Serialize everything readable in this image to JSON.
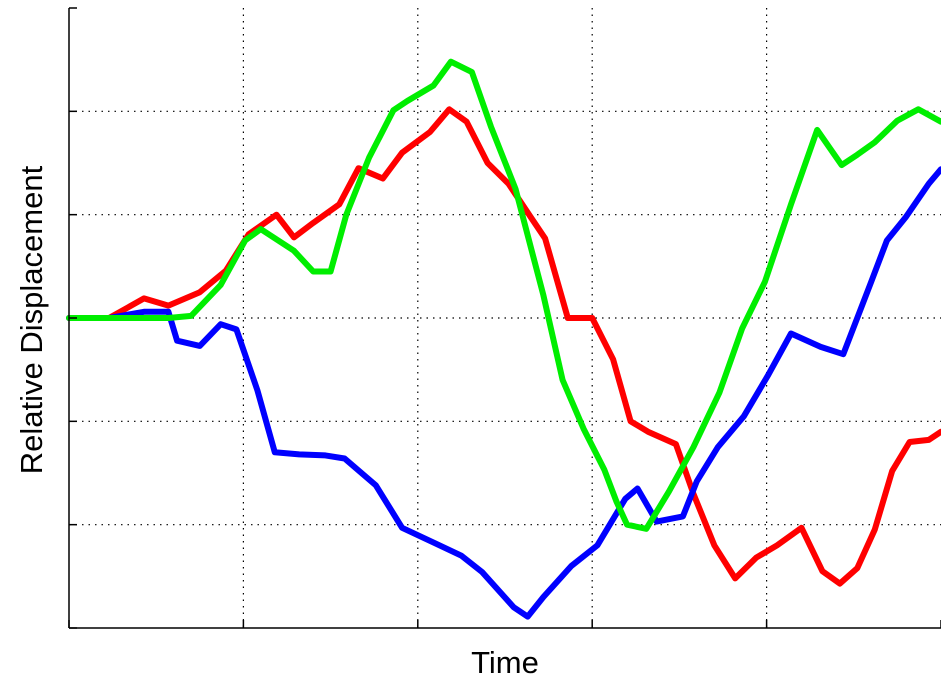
{
  "chart_data": {
    "type": "line",
    "title": "",
    "xlabel": "Time",
    "ylabel": "Relative Displacement",
    "xlim": [
      0,
      5
    ],
    "ylim": [
      -3,
      3
    ],
    "x_ticks": [
      0,
      1,
      2,
      3,
      4,
      5
    ],
    "y_ticks": [
      -3,
      -2,
      -1,
      0,
      1,
      2,
      3
    ],
    "grid": true,
    "legend": "none",
    "series": [
      {
        "color": "#ff0000",
        "x": [
          0,
          0.23,
          0.43,
          0.57,
          0.75,
          0.9,
          1.03,
          1.19,
          1.29,
          1.4,
          1.55,
          1.66,
          1.8,
          1.91,
          2.07,
          2.18,
          2.28,
          2.4,
          2.52,
          2.65,
          2.73,
          2.86,
          3.0,
          3.12,
          3.22,
          3.32,
          3.48,
          3.58,
          3.7,
          3.82,
          3.94,
          4.06,
          4.2,
          4.32,
          4.42,
          4.52,
          4.62,
          4.72,
          4.82,
          4.93,
          5.0
        ],
        "values": [
          0,
          0,
          0.19,
          0.12,
          0.25,
          0.46,
          0.81,
          1.0,
          0.78,
          0.92,
          1.1,
          1.45,
          1.35,
          1.6,
          1.8,
          2.02,
          1.9,
          1.5,
          1.3,
          0.97,
          0.77,
          0.0,
          0.0,
          -0.4,
          -1.0,
          -1.1,
          -1.22,
          -1.7,
          -2.2,
          -2.52,
          -2.32,
          -2.2,
          -2.03,
          -2.45,
          -2.57,
          -2.42,
          -2.05,
          -1.48,
          -1.2,
          -1.18,
          -1.1
        ]
      },
      {
        "color": "#0000ff",
        "x": [
          0,
          0.23,
          0.43,
          0.57,
          0.62,
          0.75,
          0.87,
          0.96,
          1.08,
          1.18,
          1.32,
          1.47,
          1.58,
          1.76,
          1.91,
          2.1,
          2.25,
          2.37,
          2.55,
          2.63,
          2.72,
          2.88,
          3.03,
          3.19,
          3.26,
          3.37,
          3.52,
          3.6,
          3.72,
          3.87,
          4.01,
          4.14,
          4.31,
          4.44,
          4.6,
          4.69,
          4.8,
          4.93,
          5.0
        ],
        "values": [
          0,
          0,
          0.06,
          0.06,
          -0.22,
          -0.27,
          -0.06,
          -0.11,
          -0.7,
          -1.3,
          -1.32,
          -1.33,
          -1.36,
          -1.62,
          -2.03,
          -2.18,
          -2.3,
          -2.46,
          -2.8,
          -2.89,
          -2.7,
          -2.4,
          -2.2,
          -1.75,
          -1.65,
          -1.97,
          -1.92,
          -1.58,
          -1.25,
          -0.95,
          -0.55,
          -0.15,
          -0.28,
          -0.35,
          0.35,
          0.75,
          0.98,
          1.3,
          1.44
        ]
      },
      {
        "color": "#00ee00",
        "x": [
          0,
          0.23,
          0.43,
          0.57,
          0.7,
          0.87,
          1.01,
          1.1,
          1.29,
          1.4,
          1.5,
          1.59,
          1.72,
          1.86,
          1.94,
          2.09,
          2.19,
          2.31,
          2.42,
          2.56,
          2.72,
          2.83,
          2.95,
          3.07,
          3.14,
          3.2,
          3.31,
          3.44,
          3.58,
          3.73,
          3.86,
          3.99,
          4.14,
          4.29,
          4.43,
          4.52,
          4.62,
          4.75,
          4.87,
          5.0
        ],
        "values": [
          0,
          0,
          0,
          0,
          0.02,
          0.32,
          0.75,
          0.86,
          0.65,
          0.45,
          0.45,
          1.0,
          1.55,
          2.01,
          2.1,
          2.25,
          2.48,
          2.38,
          1.85,
          1.25,
          0.22,
          -0.6,
          -1.07,
          -1.47,
          -1.78,
          -2.0,
          -2.04,
          -1.68,
          -1.25,
          -0.72,
          -0.1,
          0.35,
          1.1,
          1.82,
          1.48,
          1.58,
          1.7,
          1.91,
          2.02,
          1.9
        ]
      }
    ]
  }
}
